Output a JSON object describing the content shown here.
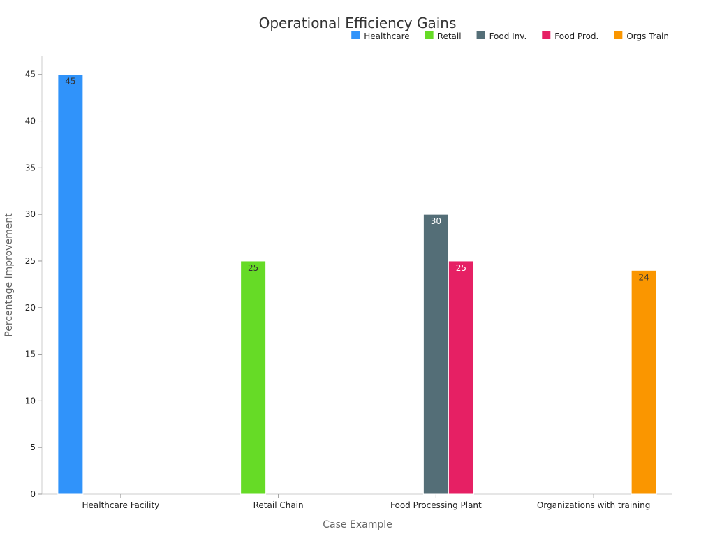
{
  "chart_data": {
    "type": "bar",
    "title": "Operational Efficiency Gains",
    "xlabel": "Case Example",
    "ylabel": "Percentage Improvement",
    "ylim": [
      0,
      47
    ],
    "yticks": [
      0,
      5,
      10,
      15,
      20,
      25,
      30,
      35,
      40,
      45
    ],
    "categories": [
      "Healthcare Facility",
      "Retail Chain",
      "Food Processing Plant",
      "Organizations with training"
    ],
    "series": [
      {
        "name": "Healthcare",
        "color": "#3093FA",
        "label_color": "#333333",
        "values": [
          45,
          null,
          null,
          null
        ]
      },
      {
        "name": "Retail",
        "color": "#66DB26",
        "label_color": "#333333",
        "values": [
          null,
          25,
          null,
          null
        ]
      },
      {
        "name": "Food Inv.",
        "color": "#546E77",
        "label_color": "#ffffff",
        "values": [
          null,
          null,
          30,
          null
        ]
      },
      {
        "name": "Food Prod.",
        "color": "#E62064",
        "label_color": "#ffffff",
        "values": [
          null,
          null,
          25,
          null
        ]
      },
      {
        "name": "Orgs Train",
        "color": "#FA9600",
        "label_color": "#333333",
        "values": [
          null,
          null,
          null,
          24
        ]
      }
    ],
    "legend_position": "top-right",
    "grid": false
  }
}
